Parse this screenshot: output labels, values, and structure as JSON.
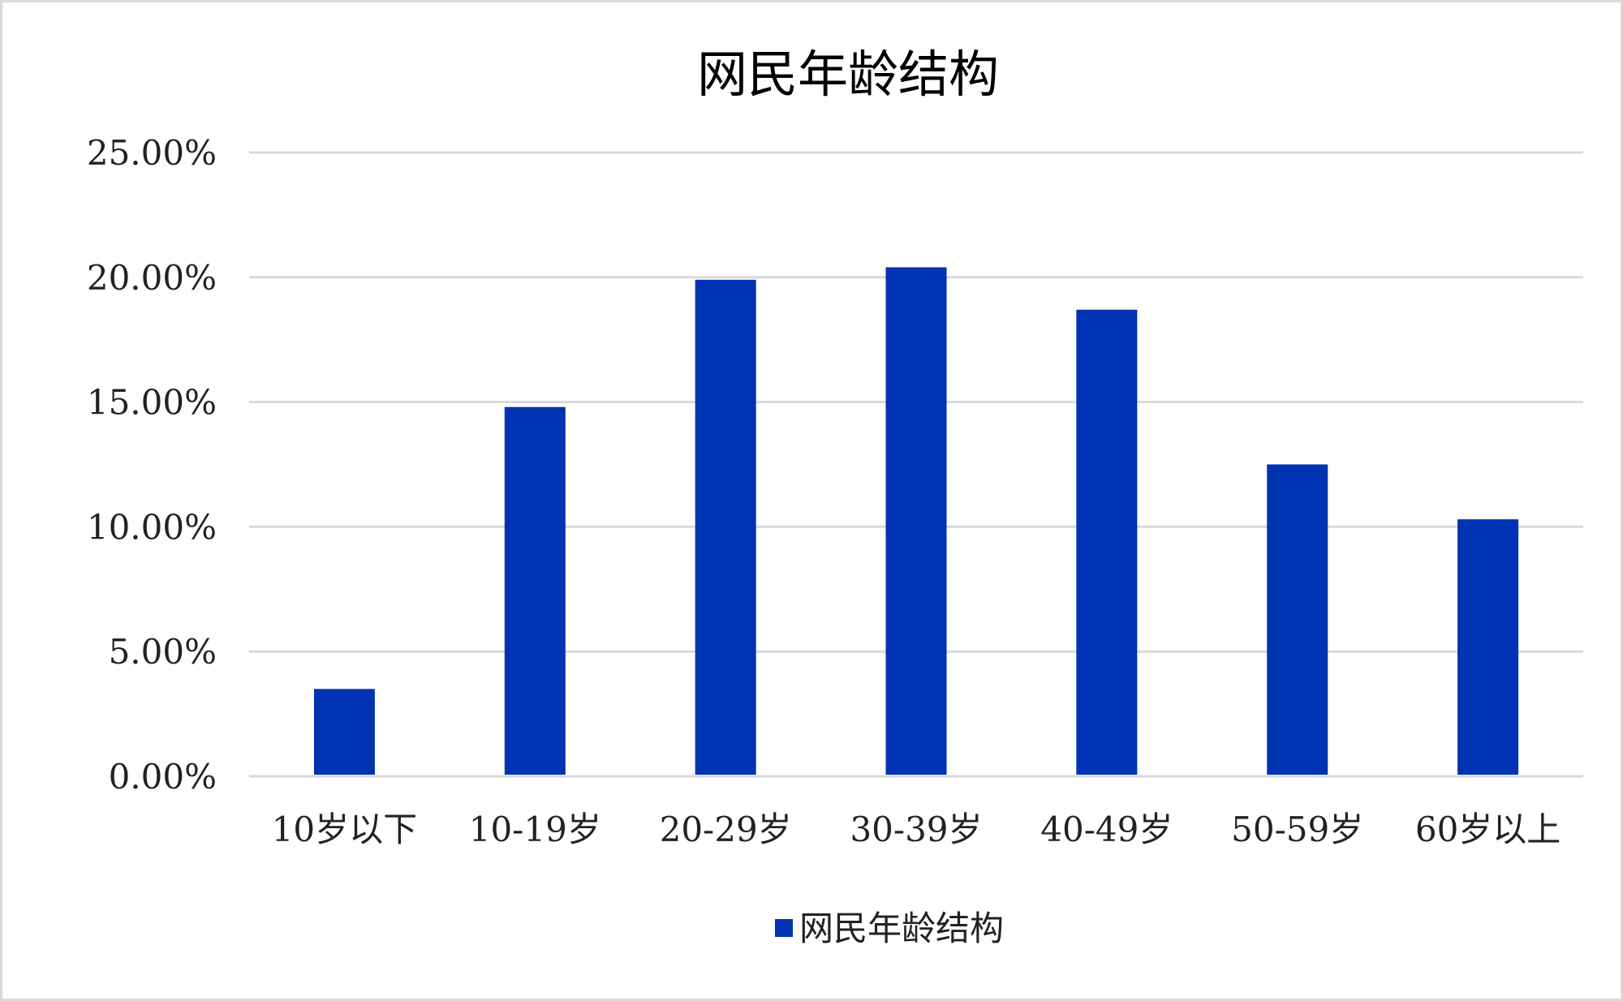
{
  "chart_data": {
    "type": "bar",
    "title": "网民年龄结构",
    "categories": [
      "10岁以下",
      "10-19岁",
      "20-29岁",
      "30-39岁",
      "40-49岁",
      "50-59岁",
      "60岁以上"
    ],
    "series": [
      {
        "name": "网民年龄结构",
        "values": [
          3.5,
          14.8,
          19.9,
          20.4,
          18.7,
          12.5,
          10.3
        ],
        "color": "#0033b4"
      }
    ],
    "ylim": [
      0,
      25
    ],
    "yticks": [
      0,
      5,
      10,
      15,
      20,
      25
    ],
    "ytick_labels": [
      "0.00%",
      "5.00%",
      "10.00%",
      "15.00%",
      "20.00%",
      "25.00%"
    ],
    "xlabel": "",
    "ylabel": "",
    "grid": true,
    "legend": "bottom",
    "gridline_color": "#d9d9d9"
  }
}
